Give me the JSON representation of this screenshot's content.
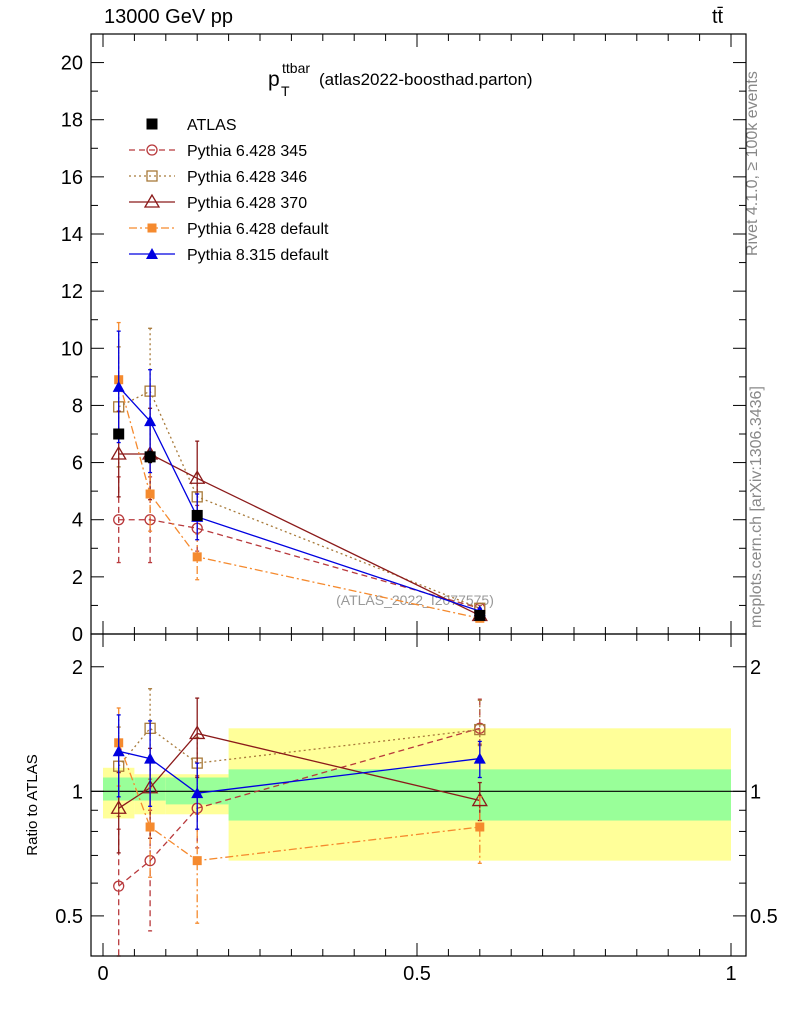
{
  "header": {
    "left": "13000 GeV pp",
    "right": "tt̄"
  },
  "side": {
    "rivet": "Rivet 4.1.0, ≥ 100k events",
    "mcplots": "mcplots.cern.ch [arXiv:1306.3436]"
  },
  "colors": {
    "atlas": "#000000",
    "p345": "#b8393c",
    "p346": "#a87a3a",
    "p370": "#8b1a1a",
    "p6def": "#f58a2e",
    "p8def": "#0000e0",
    "band_inner": "#99ff99",
    "band_outer": "#ffff99"
  },
  "chart_data": [
    {
      "type": "line",
      "panel": "main",
      "title_main": "p",
      "title_sub": "T",
      "title_sup": "ttbar",
      "title_rest": "(atlas2022-boosthad.parton)",
      "watermark": "(ATLAS_2022_I2077575)",
      "xlim": [
        0,
        1
      ],
      "ylim": [
        0,
        21
      ],
      "yticks": [
        "0",
        "2",
        "4",
        "6",
        "8",
        "10",
        "12",
        "14",
        "16",
        "18",
        "20"
      ],
      "x": [
        0.025,
        0.075,
        0.15,
        0.6
      ],
      "series": [
        {
          "key": "atlas",
          "name": "ATLAS",
          "marker": "square",
          "line": "none",
          "values": [
            7.0,
            6.2,
            4.15,
            0.65
          ],
          "err_lo": [
            0.15,
            0.2,
            0.15,
            0.05
          ],
          "err_hi": [
            0.15,
            0.2,
            0.15,
            0.05
          ]
        },
        {
          "key": "p345",
          "name": "Pythia 6.428 345",
          "marker": "circle-open",
          "line": "dashed",
          "values": [
            4.0,
            4.0,
            3.7,
            0.9
          ],
          "err_lo": [
            1.5,
            1.5,
            0.8,
            0.1
          ],
          "err_hi": [
            1.5,
            1.5,
            0.8,
            0.1
          ]
        },
        {
          "key": "p346",
          "name": "Pythia 6.428 346",
          "marker": "square-open",
          "line": "dotted",
          "values": [
            7.95,
            8.5,
            4.8,
            0.9
          ],
          "err_lo": [
            2.1,
            2.2,
            0.8,
            0.1
          ],
          "err_hi": [
            2.1,
            2.2,
            0.8,
            0.1
          ]
        },
        {
          "key": "p370",
          "name": "Pythia 6.428 370",
          "marker": "triangle-open",
          "line": "solid",
          "values": [
            6.3,
            6.3,
            5.45,
            0.65
          ],
          "err_lo": [
            1.5,
            1.6,
            1.3,
            0.1
          ],
          "err_hi": [
            1.5,
            1.6,
            1.3,
            0.1
          ]
        },
        {
          "key": "p6def",
          "name": "Pythia 6.428 default",
          "marker": "square-small",
          "line": "dashdot",
          "values": [
            8.9,
            4.9,
            2.7,
            0.55
          ],
          "err_lo": [
            2.0,
            1.3,
            0.8,
            0.1
          ],
          "err_hi": [
            2.0,
            1.3,
            0.8,
            0.1
          ]
        },
        {
          "key": "p8def",
          "name": "Pythia 8.315 default",
          "marker": "triangle",
          "line": "solid",
          "values": [
            8.65,
            7.45,
            4.1,
            0.8
          ],
          "err_lo": [
            1.95,
            1.8,
            0.8,
            0.1
          ],
          "err_hi": [
            1.95,
            1.8,
            0.8,
            0.1
          ]
        }
      ]
    },
    {
      "type": "line",
      "panel": "ratio",
      "ylabel": "Ratio to ATLAS",
      "xlim": [
        0,
        1
      ],
      "ylim": [
        0.4,
        2.4
      ],
      "yscale": "log",
      "yticks": [
        "0.5",
        "1",
        "2"
      ],
      "xticks": [
        "0",
        "0.5",
        "1"
      ],
      "band_edges": [
        0,
        0.05,
        0.1,
        0.2,
        1.0
      ],
      "band_inner": [
        [
          0.95,
          1.08
        ],
        [
          0.95,
          1.08
        ],
        [
          0.93,
          1.08
        ],
        [
          0.85,
          1.13
        ]
      ],
      "band_outer": [
        [
          0.86,
          1.14
        ],
        [
          0.88,
          1.1
        ],
        [
          0.88,
          1.1
        ],
        [
          0.68,
          1.42
        ]
      ],
      "x": [
        0.025,
        0.075,
        0.15,
        0.6
      ],
      "series": [
        {
          "key": "p345",
          "values": [
            0.59,
            0.68,
            0.91,
            1.42
          ],
          "err_lo": [
            0.22,
            0.22,
            0.18,
            0.12
          ],
          "err_hi": [
            0.22,
            0.22,
            0.18,
            0.25
          ]
        },
        {
          "key": "p346",
          "values": [
            1.15,
            1.42,
            1.17,
            1.41
          ],
          "err_lo": [
            0.28,
            0.35,
            0.18,
            0.12
          ],
          "err_hi": [
            0.28,
            0.35,
            0.18,
            0.25
          ]
        },
        {
          "key": "p370",
          "values": [
            0.91,
            1.02,
            1.38,
            0.95
          ],
          "err_lo": [
            0.2,
            0.25,
            0.3,
            0.1
          ],
          "err_hi": [
            0.2,
            0.25,
            0.3,
            0.1
          ]
        },
        {
          "key": "p6def",
          "values": [
            1.31,
            0.82,
            0.68,
            0.82
          ],
          "err_lo": [
            0.28,
            0.2,
            0.2,
            0.15
          ],
          "err_hi": [
            0.28,
            0.2,
            0.2,
            0.15
          ]
        },
        {
          "key": "p8def",
          "values": [
            1.25,
            1.2,
            0.99,
            1.2
          ],
          "err_lo": [
            0.28,
            0.28,
            0.18,
            0.12
          ],
          "err_hi": [
            0.28,
            0.28,
            0.18,
            0.12
          ]
        }
      ]
    }
  ]
}
